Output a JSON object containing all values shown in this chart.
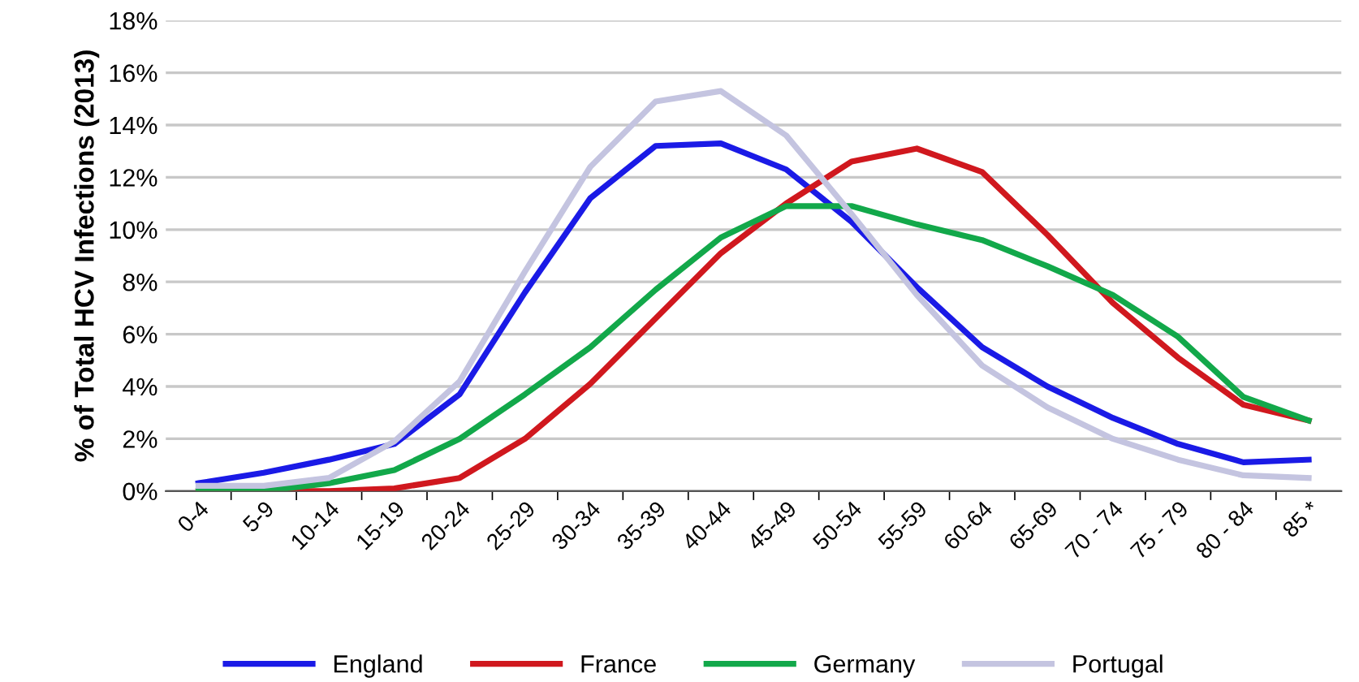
{
  "chart_data": {
    "type": "line",
    "ylabel": "% of Total HCV Infections (2013)",
    "categories": [
      "0-4",
      "5-9",
      "10-14",
      "15-19",
      "20-24",
      "25-29",
      "30-34",
      "35-39",
      "40-44",
      "45-49",
      "50-54",
      "55-59",
      "60-64",
      "65-69",
      "70 - 74",
      "75 - 79",
      "80 - 84",
      "85 *"
    ],
    "series": [
      {
        "name": "England",
        "color": "#1a1ae6",
        "values": [
          0.3,
          0.7,
          1.2,
          1.8,
          3.7,
          7.6,
          11.2,
          13.2,
          13.3,
          12.3,
          10.3,
          7.8,
          5.5,
          4.0,
          2.8,
          1.8,
          1.1,
          1.2
        ]
      },
      {
        "name": "France",
        "color": "#d0181e",
        "values": [
          0,
          0,
          0,
          0.1,
          0.5,
          2.0,
          4.1,
          6.6,
          9.1,
          11.0,
          12.6,
          13.1,
          12.2,
          9.8,
          7.2,
          5.1,
          3.3,
          2.7
        ]
      },
      {
        "name": "Germany",
        "color": "#12a84a",
        "values": [
          0,
          0,
          0.3,
          0.8,
          2.0,
          3.7,
          5.5,
          7.7,
          9.7,
          10.9,
          10.9,
          10.2,
          9.6,
          8.6,
          7.5,
          5.9,
          3.6,
          2.7
        ]
      },
      {
        "name": "Portugal",
        "color": "#c4c4e0",
        "values": [
          0.2,
          0.2,
          0.5,
          1.9,
          4.2,
          8.4,
          12.4,
          14.9,
          15.3,
          13.6,
          10.6,
          7.5,
          4.8,
          3.2,
          2.0,
          1.2,
          0.6,
          0.5
        ]
      }
    ],
    "ylim": [
      0,
      18
    ],
    "yticks": [
      {
        "value": 0,
        "label": "0%"
      },
      {
        "value": 2,
        "label": "2%"
      },
      {
        "value": 4,
        "label": "4%"
      },
      {
        "value": 6,
        "label": "6%"
      },
      {
        "value": 8,
        "label": "8%"
      },
      {
        "value": 10,
        "label": "10%"
      },
      {
        "value": 12,
        "label": "12%"
      },
      {
        "value": 14,
        "label": "14%"
      },
      {
        "value": 16,
        "label": "16%"
      },
      {
        "value": 18,
        "label": "18%"
      }
    ],
    "grid": "y",
    "legend": "bottom",
    "marker": "none",
    "line_style": "solid"
  }
}
